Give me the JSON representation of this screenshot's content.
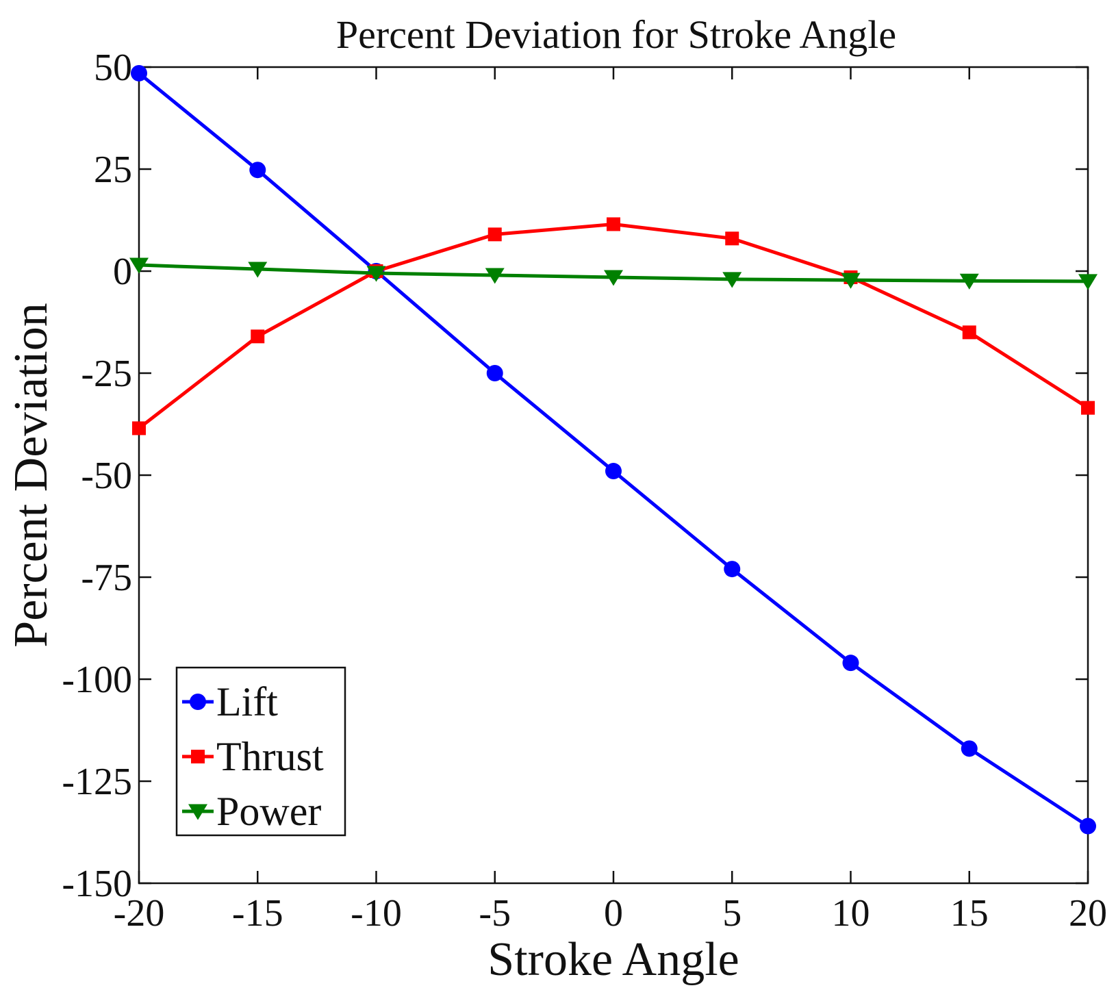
{
  "chart_data": {
    "type": "line",
    "title": "Percent Deviation for Stroke Angle",
    "xlabel": "Stroke Angle",
    "ylabel": "Percent Deviation",
    "xlim": [
      -20,
      20
    ],
    "ylim": [
      -150,
      50
    ],
    "xticks": [
      -20,
      -15,
      -10,
      -5,
      0,
      5,
      10,
      15,
      20
    ],
    "yticks": [
      50,
      25,
      0,
      -25,
      -50,
      -75,
      -100,
      -125,
      -150
    ],
    "x": [
      -20,
      -15,
      -10,
      -5,
      0,
      5,
      10,
      15,
      20
    ],
    "grid": false,
    "legend_position": "bottom-left",
    "series": [
      {
        "name": "Lift",
        "color": "#0000ff",
        "marker": "circle",
        "values": [
          48.5,
          24.8,
          0,
          -25,
          -49,
          -73,
          -96,
          -117,
          -136
        ]
      },
      {
        "name": "Thrust",
        "color": "#ff0000",
        "marker": "square",
        "values": [
          -38.5,
          -16,
          0,
          9,
          11.5,
          8,
          -1.5,
          -15,
          -33.5
        ]
      },
      {
        "name": "Power",
        "color": "#008000",
        "marker": "triangle-down",
        "values": [
          1.5,
          0.5,
          -0.5,
          -1,
          -1.5,
          -2,
          -2.2,
          -2.4,
          -2.5
        ]
      }
    ]
  }
}
